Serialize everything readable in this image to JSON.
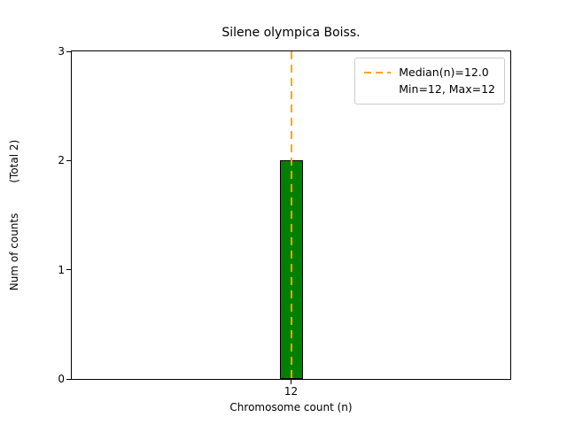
{
  "chart_data": {
    "type": "bar",
    "title": "Silene olympica Boiss.",
    "xlabel": "Chromosome count (n)",
    "ylabel": "Num of counts",
    "ylabel_secondary": "(Total 2)",
    "categories": [
      "12"
    ],
    "values": [
      2
    ],
    "ylim": [
      0,
      3
    ],
    "yticks": [
      0,
      1,
      2,
      3
    ],
    "median_line": {
      "x": "12",
      "value": 12.0
    },
    "legend": {
      "position": "upper-right",
      "entries": [
        {
          "label": "Median(n)=12.0",
          "marker": "orange-dashed-line"
        },
        {
          "label": "Min=12, Max=12",
          "marker": "none"
        }
      ]
    },
    "colors": {
      "bar_fill": "#008000",
      "bar_edge": "#000000",
      "median_line": "#ffa500",
      "axis": "#000000",
      "background": "#ffffff"
    },
    "grid": false
  }
}
